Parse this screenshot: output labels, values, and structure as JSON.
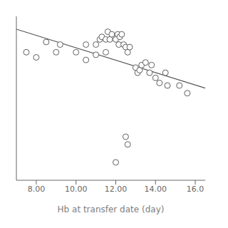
{
  "chart_data": {
    "type": "scatter",
    "xlabel": "Hb at transfer date (day)",
    "xlim": [
      7.0,
      16.5
    ],
    "ylim": [
      38,
      102
    ],
    "xticks": [
      {
        "value": 8.0,
        "label": "8.00"
      },
      {
        "value": 10.0,
        "label": "10.00"
      },
      {
        "value": 12.0,
        "label": "12.00"
      },
      {
        "value": 14.0,
        "label": "14.00"
      },
      {
        "value": 16.0,
        "label": "16.0"
      }
    ],
    "tick_labels": "x",
    "grid": false,
    "series": [
      {
        "type": "scatter",
        "marker": "open circle",
        "color": "#606060",
        "x": [
          7.5,
          8.5,
          9.0,
          9.2,
          10.0,
          10.5,
          11.0,
          11.2,
          11.3,
          11.5,
          11.6,
          11.7,
          11.8,
          12.0,
          12.1,
          12.15,
          12.2,
          12.3,
          12.4,
          12.5,
          12.6,
          12.7,
          13.0,
          13.1,
          13.2,
          13.3,
          13.5,
          13.7,
          13.8,
          14.0,
          14.2,
          14.5,
          14.6,
          15.2,
          15.6,
          12.5,
          12.6,
          12.0,
          8.0,
          10.5,
          11.0,
          11.5
        ],
        "values": [
          88,
          92,
          88,
          91,
          88,
          91,
          91,
          93,
          94,
          93,
          96,
          93,
          95,
          93,
          95,
          91,
          94,
          95,
          91,
          90,
          88,
          90,
          82,
          80,
          81,
          83,
          84,
          80,
          83,
          78,
          76,
          80,
          75,
          75,
          72,
          55,
          52,
          45,
          86,
          85,
          87,
          88
        ]
      },
      {
        "type": "line",
        "color": "#505050",
        "x": [
          7.0,
          16.5
        ],
        "values": [
          97,
          74
        ]
      }
    ]
  }
}
